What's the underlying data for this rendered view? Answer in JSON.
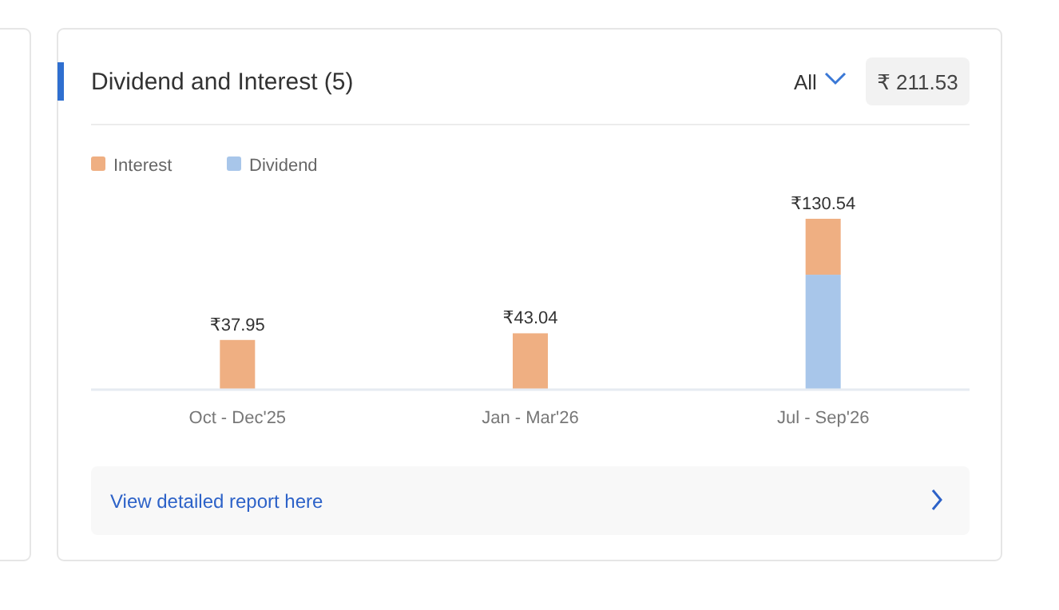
{
  "chart_data": {
    "type": "bar",
    "title": "Dividend and Interest (5)",
    "categories": [
      "Oct - Dec'25",
      "Jan - Mar'26",
      "Jul - Sep'26"
    ],
    "stacked": true,
    "legend": "top left",
    "series": [
      {
        "name": "Dividend",
        "color": "#a8c6ea",
        "values": [
          null,
          null,
          87.8
        ]
      },
      {
        "name": "Interest",
        "color": "#efaf82",
        "values": [
          37.95,
          43.04,
          42.74
        ],
        "value_labels": [
          "₹37.95",
          "₹43.04",
          null
        ]
      }
    ],
    "totals": [
      null,
      null,
      "₹130.54"
    ],
    "annotations": [
      "All",
      "₹ 211.53",
      "View detailed report here"
    ]
  }
}
